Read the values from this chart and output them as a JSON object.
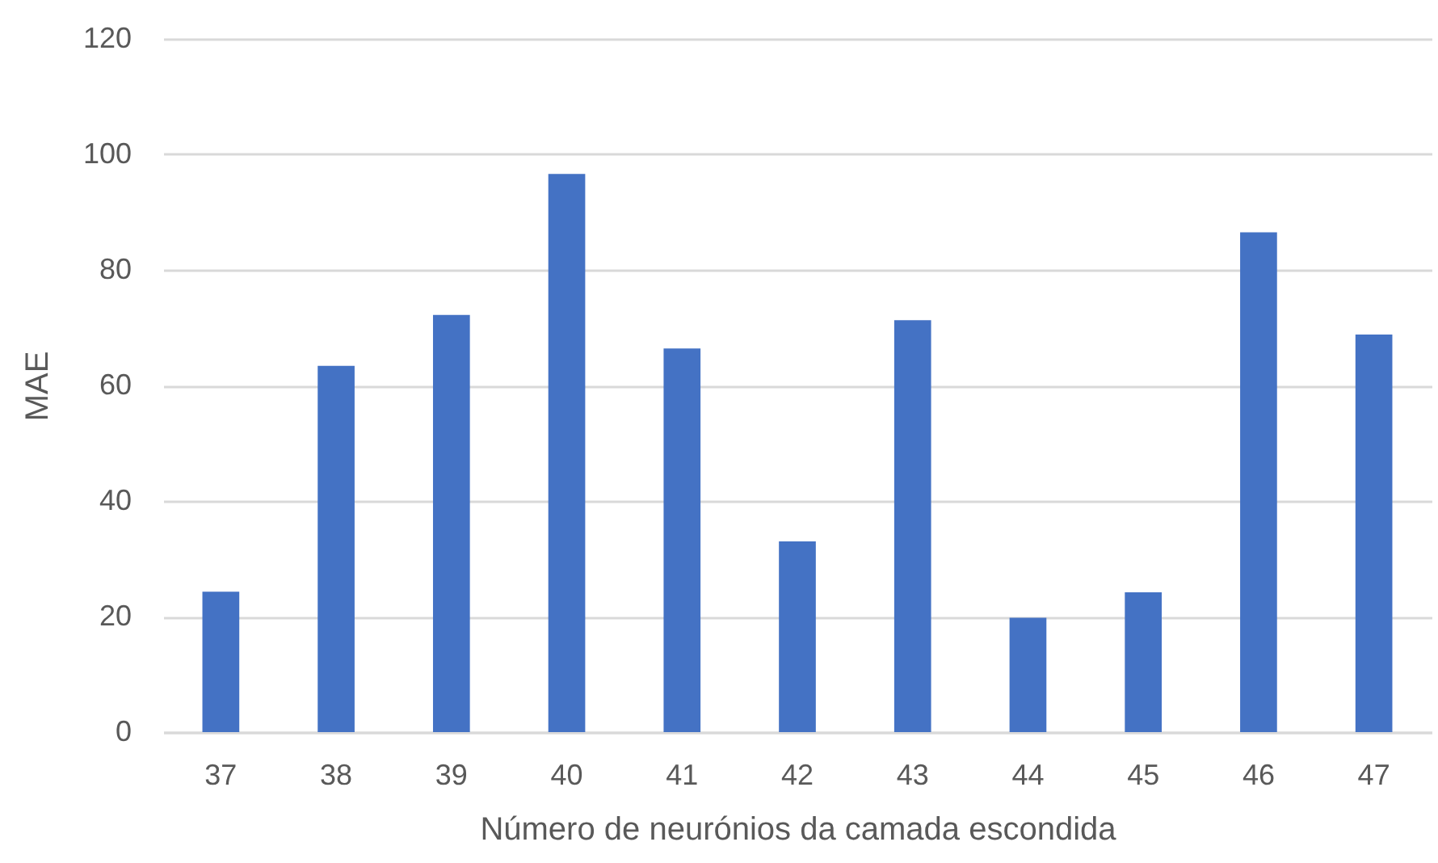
{
  "chart_data": {
    "type": "bar",
    "categories": [
      "37",
      "38",
      "39",
      "40",
      "41",
      "42",
      "43",
      "44",
      "45",
      "46",
      "47"
    ],
    "values": [
      24.3,
      63.4,
      72.2,
      96.6,
      66.4,
      33.0,
      71.3,
      19.8,
      24.2,
      86.5,
      68.8
    ],
    "color": "#4472c4",
    "xlabel": "Número de neurónios da camada escondida",
    "ylabel": "MAE",
    "ylim": [
      0,
      120
    ],
    "yticks": [
      0,
      20,
      40,
      60,
      80,
      100,
      120
    ],
    "grid": "y"
  }
}
